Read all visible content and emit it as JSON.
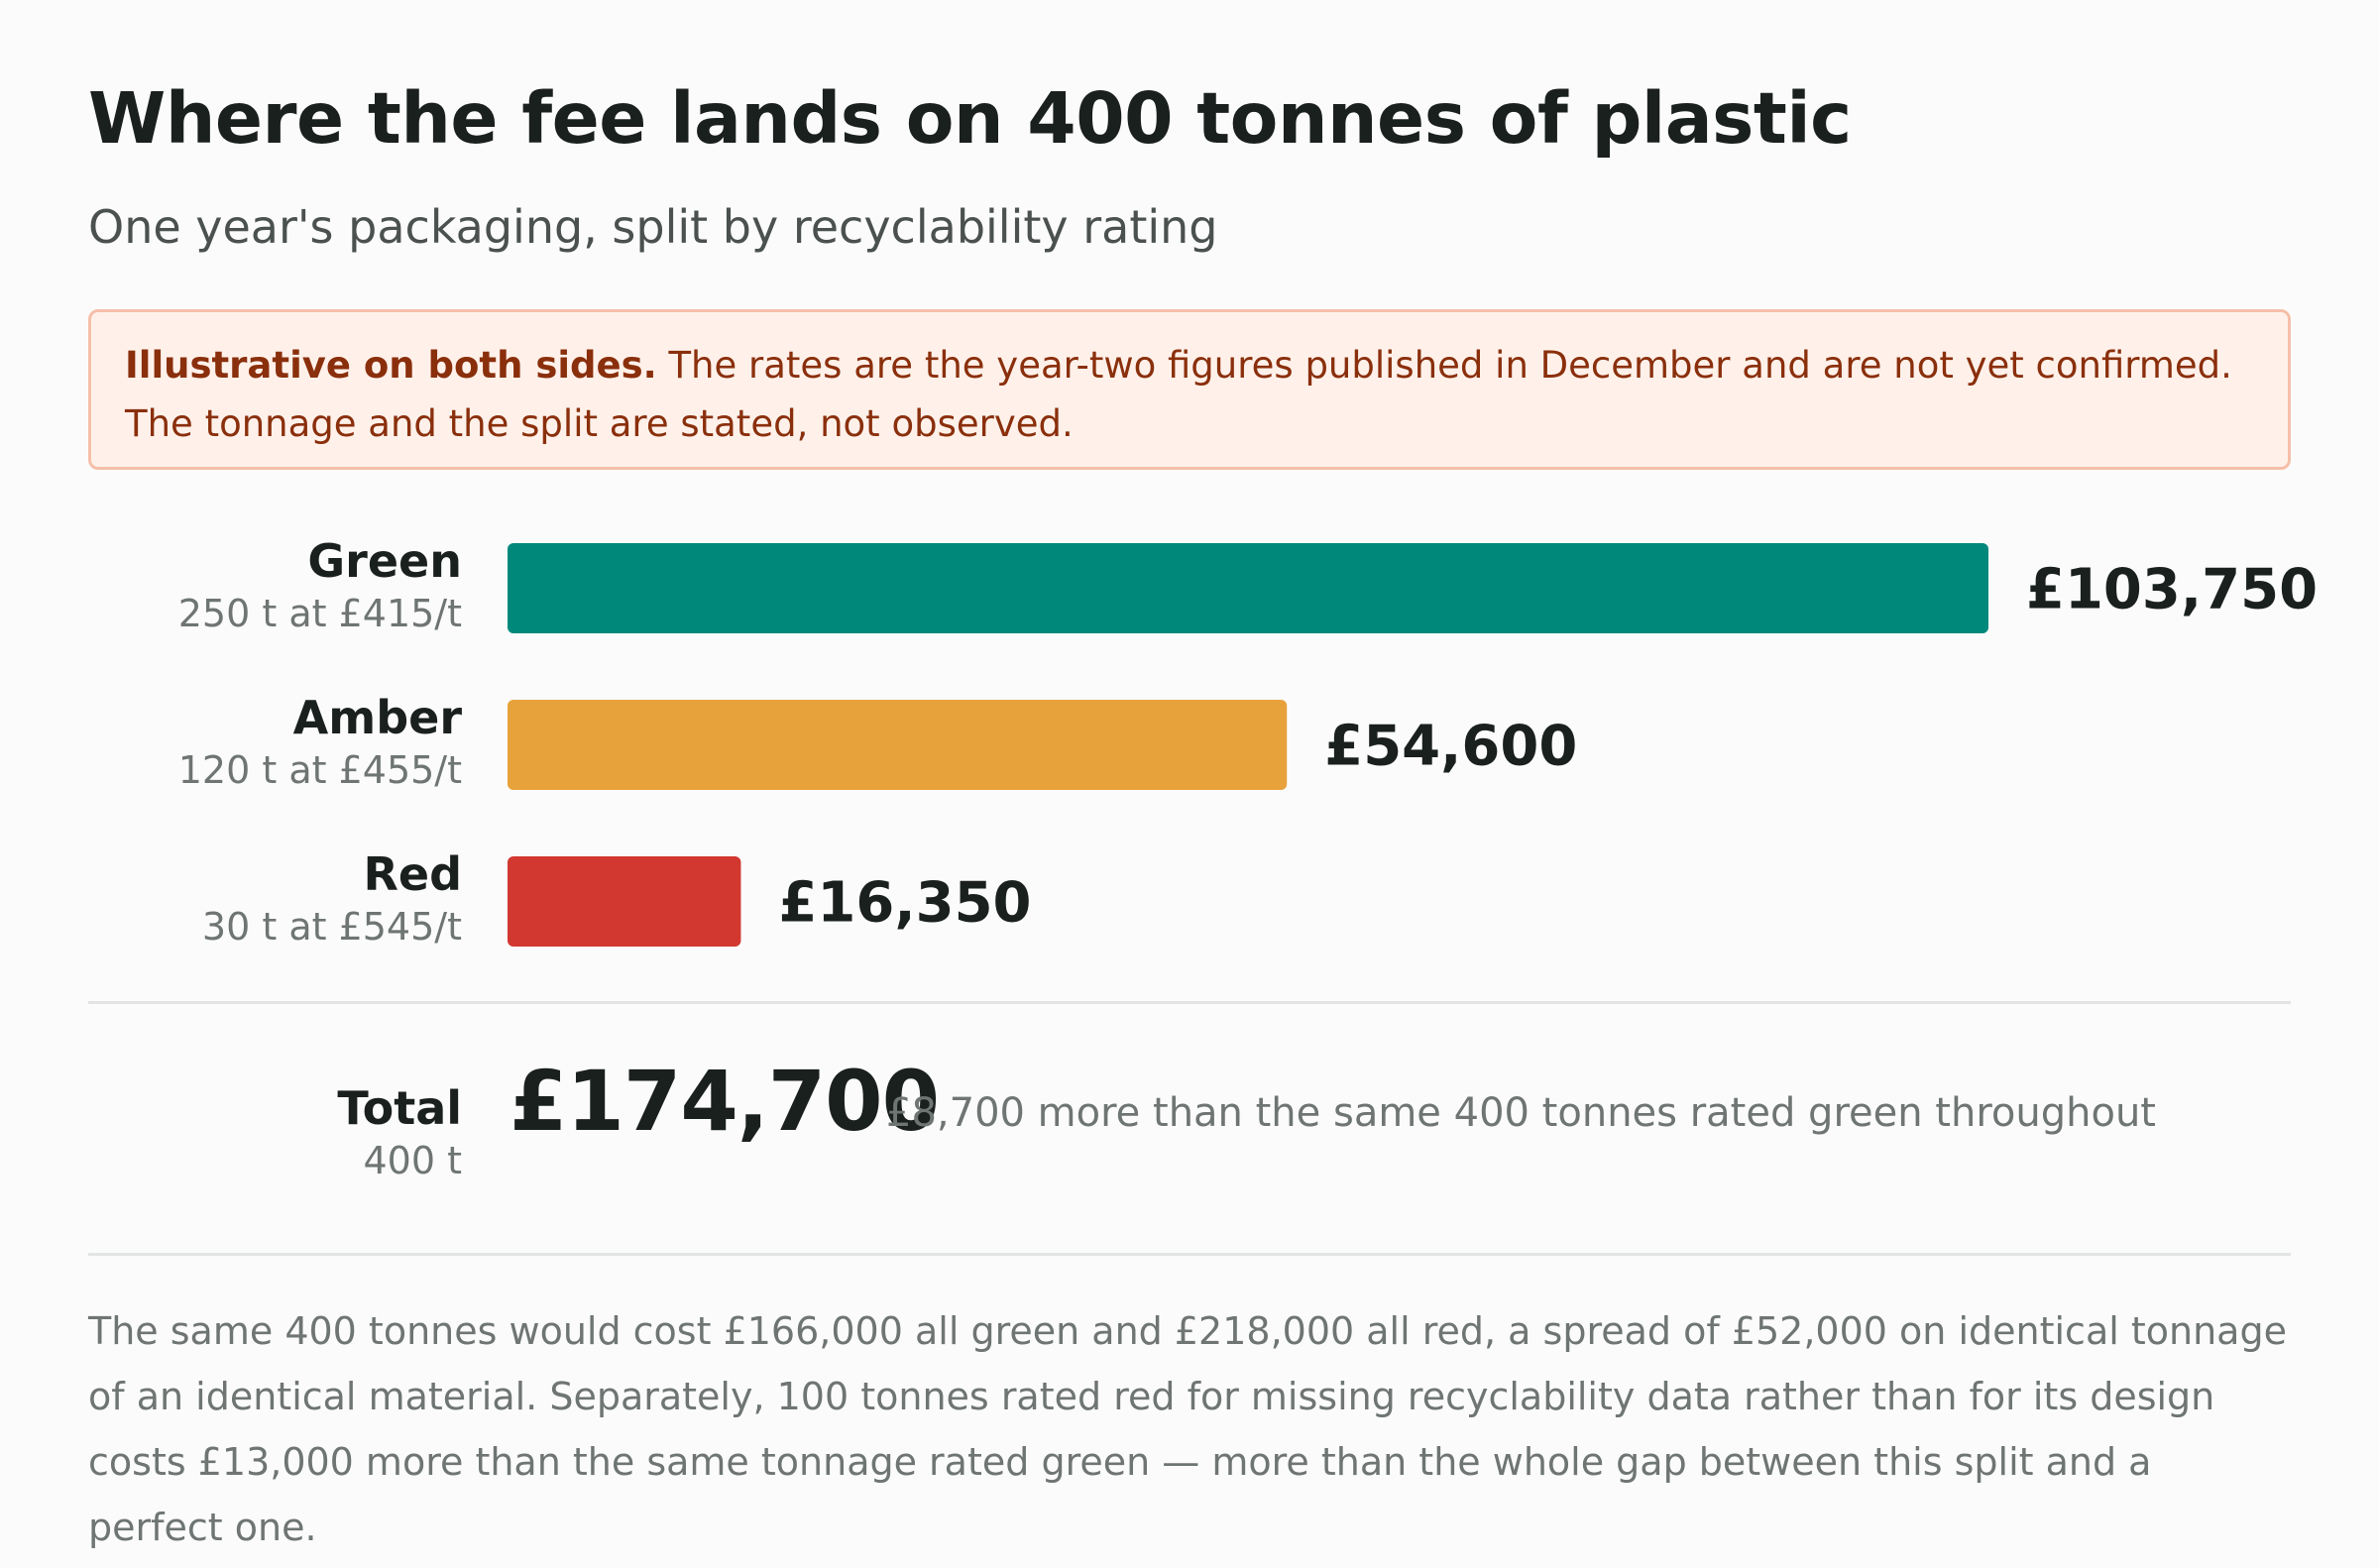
{
  "title": "Where the fee lands on 400 tonnes of plastic",
  "subtitle": "One year's packaging, split by recyclability rating",
  "note": {
    "lead": "Illustrative on both sides.",
    "text": " The rates are the year-two figures published in December and are not yet confirmed. The tonnage and the split are stated, not observed."
  },
  "colors": {
    "green": "#00897b",
    "amber": "#e8a23c",
    "red": "#d23830"
  },
  "chart_data": {
    "type": "bar",
    "orientation": "horizontal",
    "categories": [
      "Green",
      "Amber",
      "Red"
    ],
    "details": [
      "250 t at £415/t",
      "120 t at £455/t",
      "30 t at £545/t"
    ],
    "values": [
      103750,
      54600,
      16350
    ],
    "value_labels": [
      "£103,750",
      "£54,600",
      "£16,350"
    ],
    "colors": [
      "#00897b",
      "#e8a23c",
      "#d23830"
    ],
    "xlim": [
      0,
      103750
    ]
  },
  "total": {
    "label": "Total",
    "detail": "400 t",
    "value": "£174,700",
    "note": "£8,700 more than the same 400 tonnes rated green throughout"
  },
  "footnote": "The same 400 tonnes would cost £166,000 all green and £218,000 all red, a spread of £52,000 on identical tonnage of an identical material. Separately, 100 tonnes rated red for missing recyclability data rather than for its design costs £13,000 more than the same tonnage rated green — more than the whole gap between this split and a perfect one."
}
